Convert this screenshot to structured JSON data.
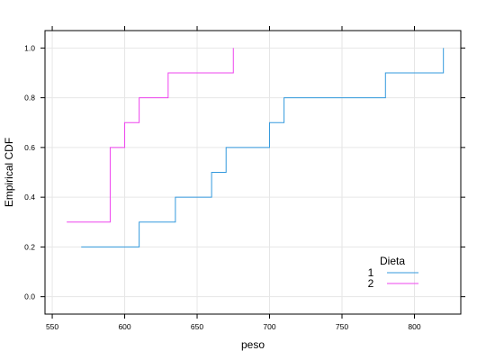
{
  "chart_data": {
    "type": "line",
    "step": true,
    "xlabel": "peso",
    "ylabel": "Empirical CDF",
    "xlim": [
      545,
      832
    ],
    "ylim": [
      -0.07,
      1.07
    ],
    "xticks": [
      550,
      600,
      650,
      700,
      750,
      800
    ],
    "yticks": [
      0.0,
      0.2,
      0.4,
      0.6,
      0.8,
      1.0
    ],
    "grid": true,
    "legend": {
      "title": "Dieta",
      "position": "bottom-right",
      "entries": [
        {
          "label": "1",
          "color": "#3399dd"
        },
        {
          "label": "2",
          "color": "#ee44ee"
        }
      ]
    },
    "series": [
      {
        "color": "#3399dd",
        "x_start": 570,
        "points": [
          [
            580,
            0.2
          ],
          [
            610,
            0.3
          ],
          [
            635,
            0.4
          ],
          [
            660,
            0.5
          ],
          [
            670,
            0.6
          ],
          [
            700,
            0.7
          ],
          [
            710,
            0.8
          ],
          [
            780,
            0.9
          ],
          [
            820,
            1.0
          ]
        ]
      },
      {
        "color": "#ee44ee",
        "x_start": 560,
        "points": [
          [
            570,
            0.3
          ],
          [
            590,
            0.6
          ],
          [
            600,
            0.7
          ],
          [
            610,
            0.8
          ],
          [
            630,
            0.9
          ],
          [
            675,
            1.0
          ]
        ]
      }
    ]
  }
}
